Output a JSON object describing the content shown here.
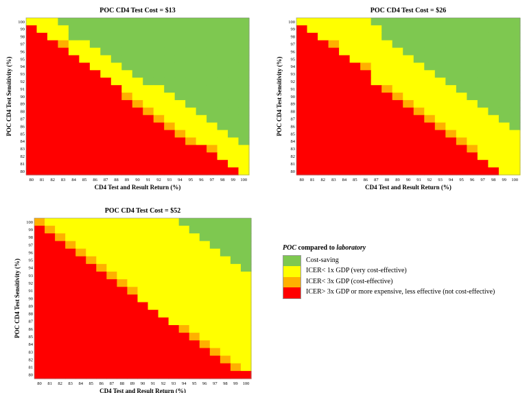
{
  "colors": {
    "cost_saving": "#7ec850",
    "icer_1x": "#ffff00",
    "icer_3x": "#ffb000",
    "not_ce": "#ff0000"
  },
  "legend": {
    "title_prefix": "POC",
    "title_mid": " compared to ",
    "title_suffix": "laboratory",
    "items": [
      {
        "label": "Cost-saving",
        "color": "#7ec850"
      },
      {
        "label": "ICER< 1x GDP (very cost-effective)",
        "color": "#ffff00"
      },
      {
        "label": "ICER< 3x GDP (cost-effective)",
        "color": "#ffb000"
      },
      {
        "label": "ICER> 3x GDP or more expensive, less effective (not cost-effective)",
        "color": "#ff0000"
      }
    ]
  },
  "chart_data": [
    {
      "type": "heatmap",
      "title": "POC CD4 Test Cost = $13",
      "xlabel": "CD4 Test and Result Return (%)",
      "ylabel": "POC CD4 Test Sensitivity (%)",
      "x_ticks": [
        "80",
        "81",
        "82",
        "83",
        "84",
        "85",
        "86",
        "87",
        "88",
        "89",
        "90",
        "91",
        "92",
        "93",
        "94",
        "95",
        "96",
        "97",
        "98",
        "99",
        "100"
      ],
      "y_ticks": [
        "100",
        "99",
        "98",
        "97",
        "96",
        "95",
        "94",
        "93",
        "92",
        "91",
        "90",
        "89",
        "88",
        "87",
        "86",
        "85",
        "84",
        "83",
        "82",
        "81",
        "80"
      ],
      "rows": [
        "YYYGGGGGGGGGGGGGGGGGG",
        "RYYYGGGGGGGGGGGGGGGGG",
        "RRYYGGGGGGGGGGGGGGGGG",
        "RRROYYGGGGGGGGGGGGGGG",
        "RRRRYYYGGGGGGGGGGGGGG",
        "RRRRRYYYGGGGGGGGGGGGG",
        "RRRRRRYYYGGGGGGGGGGGG",
        "RRRRRRRYYYGGGGGGGGGGG",
        "RRRRRRRRYYYGGGGGGGGGG",
        "RRRRRRRRRYYYYGGGGGGGG",
        "RRRRRRRRROYYYYGGGGGGG",
        "RRRRRRRRRROYYYYGGGGGG",
        "RRRRRRRRRRROYYYYGGGGG",
        "RRRRRRRRRRRROYYYYGGGG",
        "RRRRRRRRRRRRROYYYYGGG",
        "RRRRRRRRRRRRRROYYYYGG",
        "RRRRRRRRRRRRRRROYYYYG",
        "RRRRRRRRRRRRRRRRROYYY",
        "RRRRRRRRRRRRRRRRRRYYY",
        "RRRRRRRRRRRRRRRRRRRYY",
        "RRRRRRRRRRRRRRRRRRRRY"
      ]
    },
    {
      "type": "heatmap",
      "title": "POC CD4 Test Cost = $26",
      "xlabel": "CD4 Test and Result Return (%)",
      "ylabel": "POC CD4 Test Sensitivity (%)",
      "x_ticks": [
        "80",
        "81",
        "82",
        "83",
        "84",
        "85",
        "86",
        "87",
        "88",
        "89",
        "90",
        "91",
        "92",
        "93",
        "94",
        "95",
        "96",
        "97",
        "98",
        "99",
        "100"
      ],
      "y_ticks": [
        "100",
        "99",
        "98",
        "97",
        "96",
        "95",
        "94",
        "93",
        "92",
        "91",
        "90",
        "89",
        "88",
        "87",
        "86",
        "85",
        "84",
        "83",
        "82",
        "81",
        "80"
      ],
      "rows": [
        "YYYYYYYGGGGGGGGGGGGGG",
        "RYYYYYYYGGGGGGGGGGGGG",
        "RRYYYYYYGGGGGGGGGGGGG",
        "RRROYYYYYGGGGGGGGGGGG",
        "RRRRYYYYYYGGGGGGGGGGG",
        "RRRRRYYYYYYGGGGGGGGGG",
        "RRRRRROYYYYYGGGGGGGGG",
        "RRRRRRRYYYYYYGGGGGGGG",
        "RRRRRRRYYYYYYYGGGGGGG",
        "RRRRRRRROYYYYYYGGGGGG",
        "RRRRRRRRROYYYYYYGGGGG",
        "RRRRRRRRRROYYYYYYGGGG",
        "RRRRRRRRRRROYYYYYYGGG",
        "RRRRRRRRRRRROYYYYYYGG",
        "RRRRRRRRRRRRROYYYYYYG",
        "RRRRRRRRRRRRRROYYYYYY",
        "RRRRRRRRRRRRRRROYYYYY",
        "RRRRRRRRRRRRRRRROYYYY",
        "RRRRRRRRRRRRRRRRRYYYY",
        "RRRRRRRRRRRRRRRRRRYYY",
        "RRRRRRRRRRRRRRRRRRRYY"
      ]
    },
    {
      "type": "heatmap",
      "title": "POC CD4 Test Cost = $52",
      "xlabel": "CD4 Test and Result Return (%)",
      "ylabel": "POC CD4 Test Sensitivity (%)",
      "x_ticks": [
        "80",
        "81",
        "82",
        "83",
        "84",
        "85",
        "86",
        "87",
        "88",
        "89",
        "90",
        "91",
        "92",
        "93",
        "94",
        "95",
        "96",
        "97",
        "98",
        "99",
        "100"
      ],
      "y_ticks": [
        "100",
        "99",
        "98",
        "97",
        "96",
        "95",
        "94",
        "93",
        "92",
        "91",
        "90",
        "89",
        "88",
        "87",
        "86",
        "85",
        "84",
        "83",
        "82",
        "81",
        "80"
      ],
      "rows": [
        "OYYYYYYYYYYYYYGGGGGGG",
        "ROYYYYYYYYYYYYYGGGGGG",
        "RROYYYYYYYYYYYYYGGGGG",
        "RRROYYYYYYYYYYYYYGGGG",
        "RRRROYYYYYYYYYYYYYGGG",
        "RRRRROYYYYYYYYYYYYYGG",
        "RRRRRROYYYYYYYYYYYYYG",
        "RRRRRRROYYYYYYYYYYYYY",
        "RRRRRRRROYYYYYYYYYYYY",
        "RRRRRRRRROYYYYYYYYYYY",
        "RRRRRRRRRRYYYYYYYYYYY",
        "RRRRRRRRRRRYYYYYYYYYY",
        "RRRRRRRRRRRRYYYYYYYYY",
        "RRRRRRRRRRRRRYYYYYYYY",
        "RRRRRRRRRRRRRROYYYYYY",
        "RRRRRRRRRRRRRRROYYYYY",
        "RRRRRRRRRRRRRRRROYYYY",
        "RRRRRRRRRRRRRRRRROYYY",
        "RRRRRRRRRRRRRRRRRROYY",
        "RRRRRRRRRRRRRRRRRRROY",
        "RRRRRRRRRRRRRRRRRRRRR"
      ]
    }
  ]
}
